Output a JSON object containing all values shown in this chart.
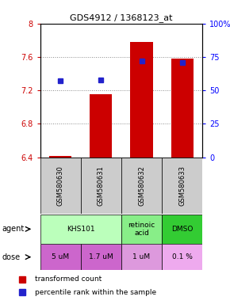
{
  "title": "GDS4912 / 1368123_at",
  "samples": [
    "GSM580630",
    "GSM580631",
    "GSM580632",
    "GSM580633"
  ],
  "bar_bottoms": [
    6.4,
    6.4,
    6.4,
    6.4
  ],
  "bar_tops": [
    6.41,
    7.15,
    7.78,
    7.58
  ],
  "bar_color": "#cc0000",
  "percentile_values": [
    57,
    58,
    72,
    71
  ],
  "percentile_color": "#2222cc",
  "ylim_left": [
    6.4,
    8.0
  ],
  "ylim_right": [
    0,
    100
  ],
  "yticks_left": [
    6.4,
    6.8,
    7.2,
    7.6,
    8.0
  ],
  "ytick_labels_left": [
    "6.4",
    "6.8",
    "7.2",
    "7.6",
    "8"
  ],
  "yticks_right": [
    0,
    25,
    50,
    75,
    100
  ],
  "ytick_labels_right": [
    "0",
    "25",
    "50",
    "75",
    "100%"
  ],
  "dose_labels": [
    "5 uM",
    "1.7 uM",
    "1 uM",
    "0.1 %"
  ],
  "dose_color": "#dd77dd",
  "dose_colors": [
    "#cc66cc",
    "#cc66cc",
    "#dd99dd",
    "#eeaaee"
  ],
  "sample_bg_color": "#cccccc",
  "legend_red": "transformed count",
  "legend_blue": "percentile rank within the sample",
  "bar_width": 0.55,
  "x_positions": [
    1,
    2,
    3,
    4
  ],
  "agent_groups": [
    {
      "cols": [
        1,
        2
      ],
      "label": "KHS101",
      "color": "#bbffbb"
    },
    {
      "cols": [
        3
      ],
      "label": "retinoic\nacid",
      "color": "#88ee88"
    },
    {
      "cols": [
        4
      ],
      "label": "DMSO",
      "color": "#33cc33"
    }
  ]
}
